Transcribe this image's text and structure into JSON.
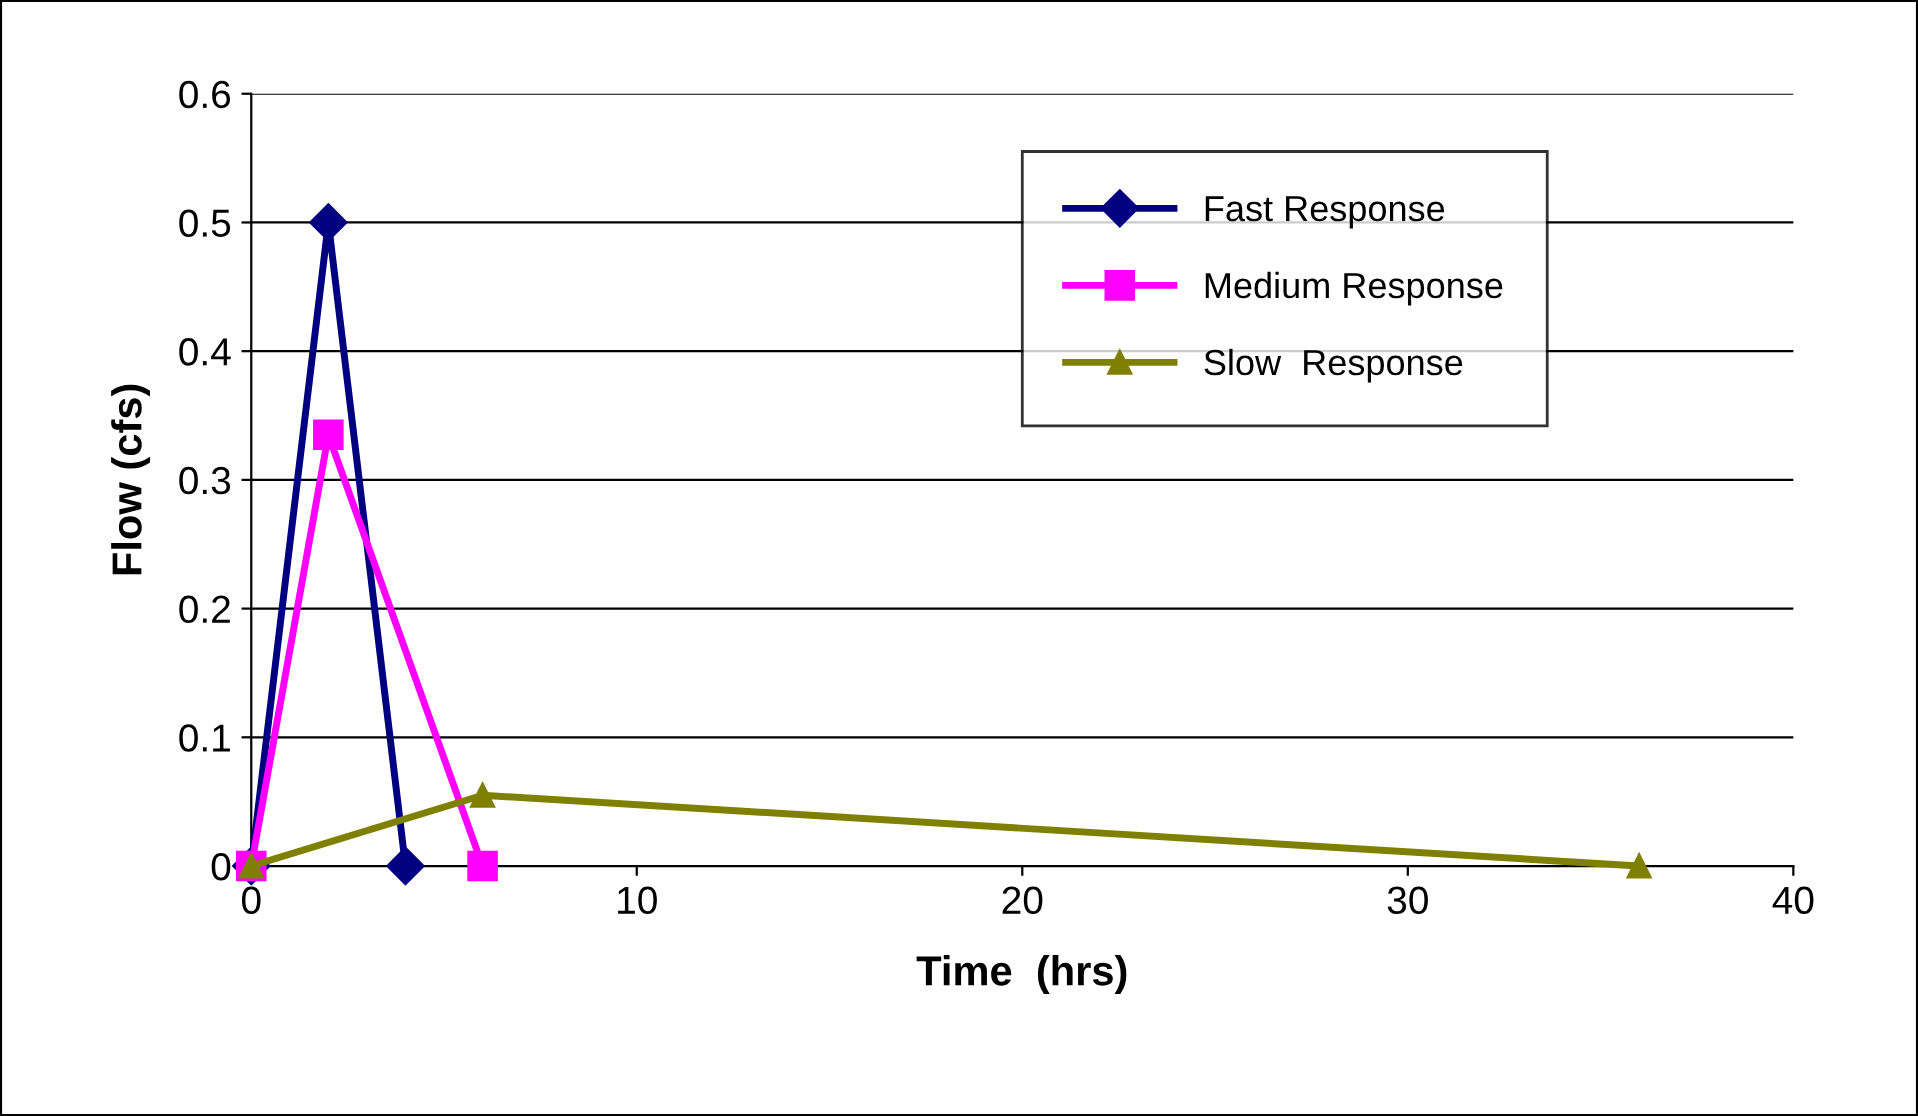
{
  "chart_data": {
    "type": "line",
    "xlabel": "Time  (hrs)",
    "ylabel": "Flow (cfs)",
    "xlim": [
      0,
      40
    ],
    "xticks": [
      0,
      10,
      20,
      30,
      40
    ],
    "ylim": [
      0,
      0.6
    ],
    "yticks": [
      0,
      0.1,
      0.2,
      0.3,
      0.4,
      0.5,
      0.6
    ],
    "grid": "y",
    "legend": "top right",
    "line_style": "solid",
    "series": [
      {
        "name": "Fast Response",
        "color": "#000080",
        "marker": "diamond",
        "x": [
          0,
          2,
          4
        ],
        "values": [
          0,
          0.5,
          0
        ]
      },
      {
        "name": "Medium Response",
        "color": "#ff00ff",
        "marker": "square",
        "x": [
          0,
          2,
          6
        ],
        "values": [
          0,
          0.335,
          0
        ]
      },
      {
        "name": "Slow  Response",
        "color": "#808000",
        "marker": "triangle",
        "x": [
          0,
          6,
          36
        ],
        "values": [
          0,
          0.055,
          0
        ]
      }
    ]
  }
}
